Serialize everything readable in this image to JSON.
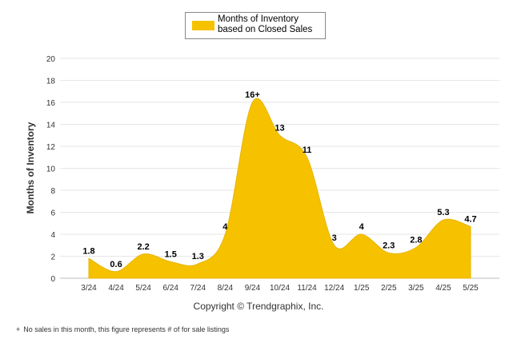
{
  "chart_data": {
    "type": "area",
    "categories": [
      "3/24",
      "4/24",
      "5/24",
      "6/24",
      "7/24",
      "8/24",
      "9/24",
      "10/24",
      "11/24",
      "12/24",
      "1/25",
      "2/25",
      "3/25",
      "4/25",
      "5/25"
    ],
    "series": [
      {
        "name": "Months of Inventory based on Closed Sales",
        "values": [
          1.8,
          0.6,
          2.2,
          1.5,
          1.3,
          4,
          16,
          13,
          11,
          3,
          4,
          2.3,
          2.8,
          5.3,
          4.7
        ],
        "labels": [
          "1.8",
          "0.6",
          "2.2",
          "1.5",
          "1.3",
          "4",
          "16+",
          "13",
          "11",
          "3",
          "4",
          "2.3",
          "2.8",
          "5.3",
          "4.7"
        ]
      }
    ],
    "ylabel": "Months of Inventory",
    "xlabel": "",
    "ylim": [
      0,
      20
    ],
    "yticks": [
      0,
      2,
      4,
      6,
      8,
      10,
      12,
      14,
      16,
      18,
      20
    ],
    "grid": true,
    "legend": "top-center",
    "color": "#f6c200"
  },
  "legend": {
    "label": "Months of Inventory based on Closed Sales"
  },
  "copyright": "Copyright © Trendgraphix, Inc.",
  "footnote": {
    "mark": "+",
    "text": "No sales in this month, this figure represents # of for sale listings"
  }
}
